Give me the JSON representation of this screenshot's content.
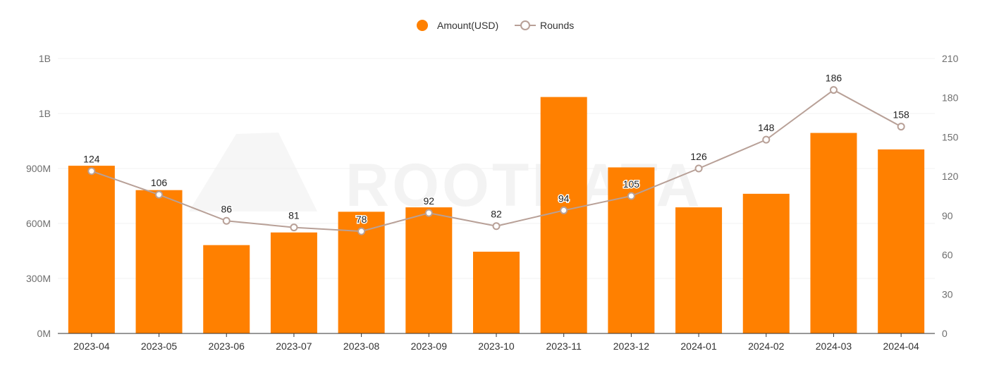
{
  "chart_data": {
    "type": "bar",
    "categories": [
      "2023-04",
      "2023-05",
      "2023-06",
      "2023-07",
      "2023-08",
      "2023-09",
      "2023-10",
      "2023-11",
      "2023-12",
      "2024-01",
      "2024-02",
      "2024-03",
      "2024-04"
    ],
    "series": [
      {
        "name": "Amount(USD)",
        "type": "bar",
        "axis": "left",
        "color": "#ff8000",
        "values": [
          915000000,
          782000000,
          482000000,
          551000000,
          664000000,
          688000000,
          446000000,
          1290000000,
          906000000,
          688000000,
          762000000,
          1094000000,
          1004000000
        ]
      },
      {
        "name": "Rounds",
        "type": "line",
        "axis": "right",
        "color": "#b8a097",
        "values": [
          124,
          106,
          86,
          81,
          78,
          92,
          82,
          94,
          105,
          126,
          148,
          186,
          158
        ]
      }
    ],
    "y_left": {
      "range": [
        0,
        1500000000
      ],
      "ticks": [
        "0M",
        "300M",
        "600M",
        "900M",
        "1B",
        "1B"
      ]
    },
    "y_right": {
      "range": [
        0,
        210
      ],
      "ticks": [
        "0",
        "30",
        "60",
        "90",
        "120",
        "150",
        "180",
        "210"
      ]
    },
    "grid": true,
    "legend_position": "top-center",
    "watermark": "ROOTDATA"
  }
}
